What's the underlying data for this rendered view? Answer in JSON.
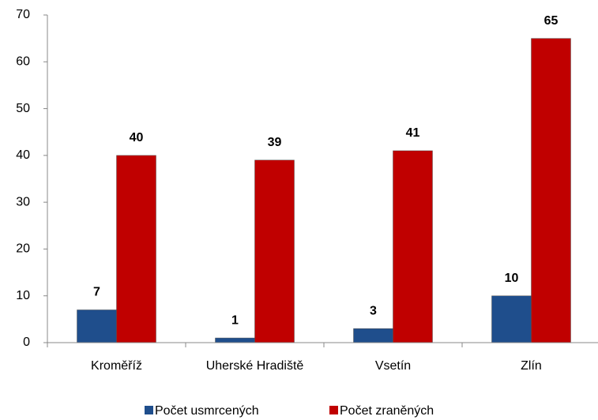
{
  "chart_data": {
    "type": "bar",
    "categories": [
      "Kroměříž",
      "Uherské Hradiště",
      "Vsetín",
      "Zlín"
    ],
    "series": [
      {
        "name": "Počet usmrcených",
        "color": "#1f4e8c",
        "values": [
          7,
          1,
          3,
          10
        ]
      },
      {
        "name": "Počet zraněných",
        "color": "#c00000",
        "values": [
          40,
          39,
          41,
          65
        ]
      }
    ],
    "ylim": [
      0,
      70
    ],
    "yticks": [
      0,
      10,
      20,
      30,
      40,
      50,
      60,
      70
    ],
    "grid": false,
    "legend": "bottom"
  }
}
